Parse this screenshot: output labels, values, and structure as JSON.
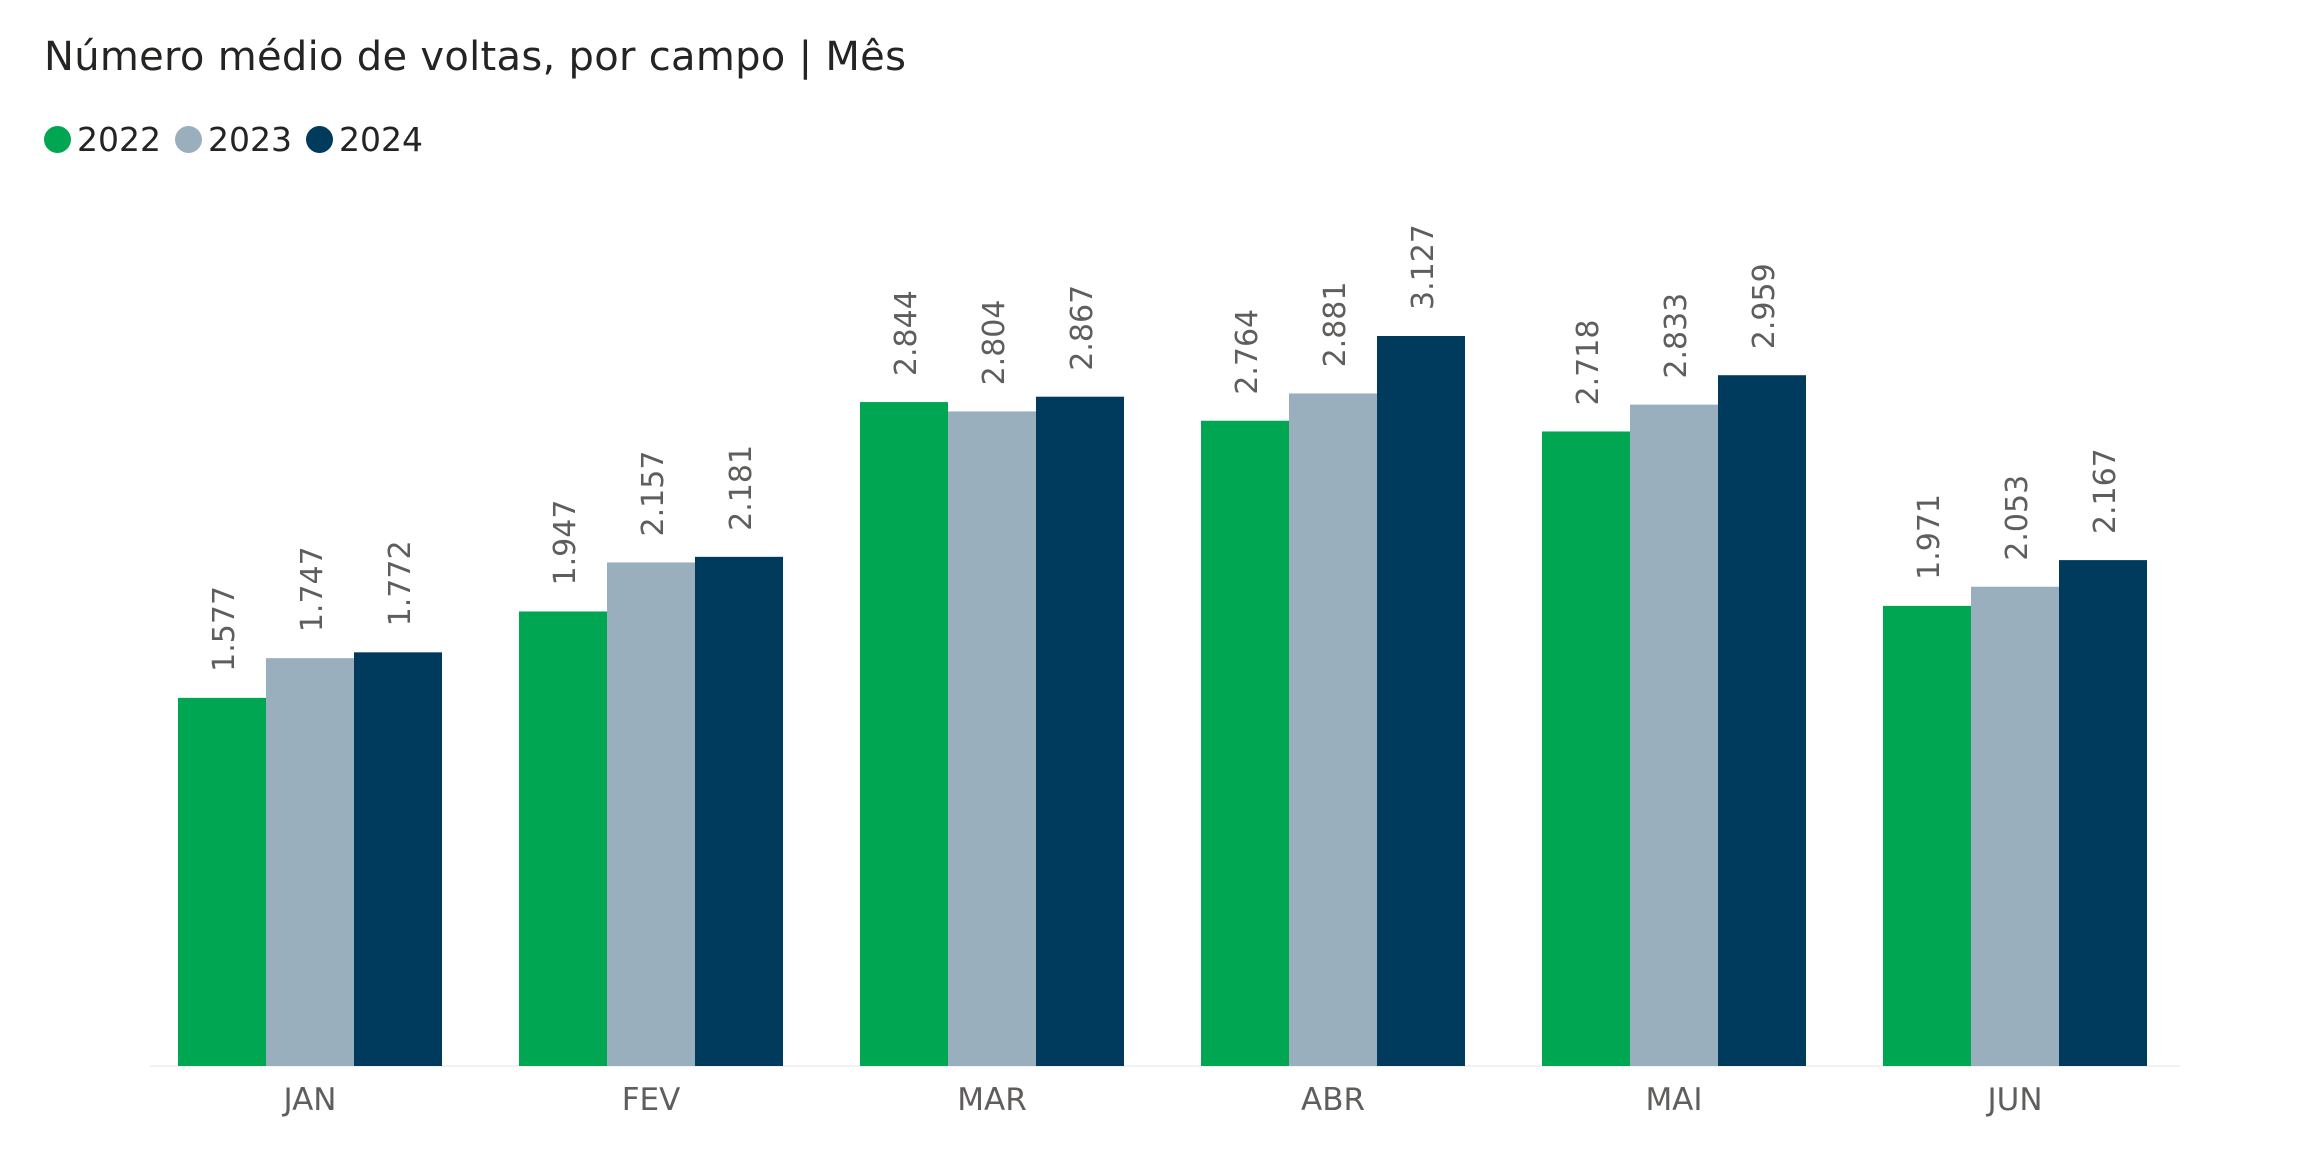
{
  "chart_data": {
    "type": "bar",
    "title": "Número médio de voltas, por campo | Mês",
    "categories": [
      "JAN",
      "FEV",
      "MAR",
      "ABR",
      "MAI",
      "JUN"
    ],
    "series": [
      {
        "name": "2022",
        "color": "#00A651",
        "values": [
          1.577,
          1.947,
          2.844,
          2.764,
          2.718,
          1.971
        ],
        "labels": [
          "1.577",
          "1.947",
          "2.844",
          "2.764",
          "2.718",
          "1.971"
        ]
      },
      {
        "name": "2023",
        "color": "#9AAFBD",
        "values": [
          1.747,
          2.157,
          2.804,
          2.881,
          2.833,
          2.053
        ],
        "labels": [
          "1.747",
          "2.157",
          "2.804",
          "2.881",
          "2.833",
          "2.053"
        ]
      },
      {
        "name": "2024",
        "color": "#003A5D",
        "values": [
          1.772,
          2.181,
          2.867,
          3.127,
          2.959,
          2.167
        ],
        "labels": [
          "1.772",
          "2.181",
          "2.867",
          "3.127",
          "2.959",
          "2.167"
        ]
      }
    ],
    "ylim": [
      0,
      3.127
    ],
    "legend": "top-left",
    "grid": false,
    "xlabel": "",
    "ylabel": ""
  }
}
